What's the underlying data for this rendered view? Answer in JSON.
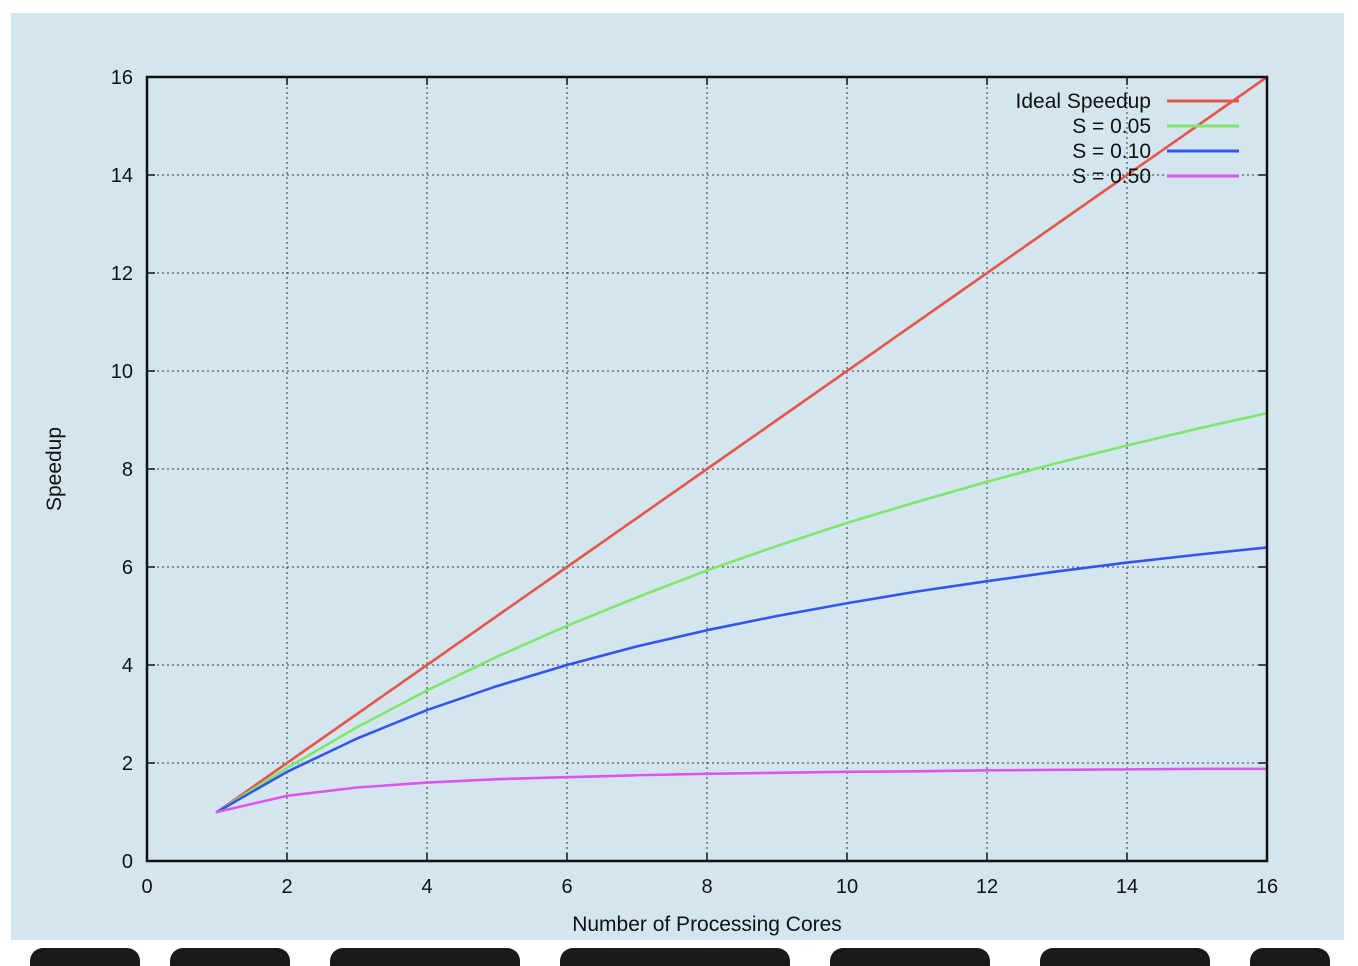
{
  "chart_data": {
    "type": "line",
    "title": "",
    "xlabel": "Number of Processing Cores",
    "ylabel": "Speedup",
    "xlim": [
      0,
      16
    ],
    "ylim": [
      0,
      16
    ],
    "xticks": [
      0,
      2,
      4,
      6,
      8,
      10,
      12,
      14,
      16
    ],
    "yticks": [
      0,
      2,
      4,
      6,
      8,
      10,
      12,
      14,
      16
    ],
    "grid": true,
    "legend_position": "top-right",
    "x": [
      1,
      2,
      3,
      4,
      5,
      6,
      7,
      8,
      9,
      10,
      11,
      12,
      13,
      14,
      15,
      16
    ],
    "series": [
      {
        "name": "Ideal Speedup",
        "color": "#e8554a",
        "values": [
          1,
          2,
          3,
          4,
          5,
          6,
          7,
          8,
          9,
          10,
          11,
          12,
          13,
          14,
          15,
          16
        ]
      },
      {
        "name": "S = 0.05",
        "color": "#7ee66b",
        "values": [
          1,
          1.9,
          2.73,
          3.48,
          4.17,
          4.8,
          5.38,
          5.93,
          6.43,
          6.9,
          7.33,
          7.74,
          8.12,
          8.48,
          8.82,
          9.14
        ]
      },
      {
        "name": "S = 0.10",
        "color": "#3355ee",
        "values": [
          1,
          1.82,
          2.5,
          3.08,
          3.57,
          4.0,
          4.38,
          4.71,
          5.0,
          5.26,
          5.5,
          5.71,
          5.91,
          6.09,
          6.25,
          6.4
        ]
      },
      {
        "name": "S = 0.50",
        "color": "#dd55ee",
        "values": [
          1,
          1.33,
          1.5,
          1.6,
          1.67,
          1.71,
          1.75,
          1.78,
          1.8,
          1.82,
          1.83,
          1.85,
          1.86,
          1.87,
          1.88,
          1.88
        ]
      }
    ]
  }
}
